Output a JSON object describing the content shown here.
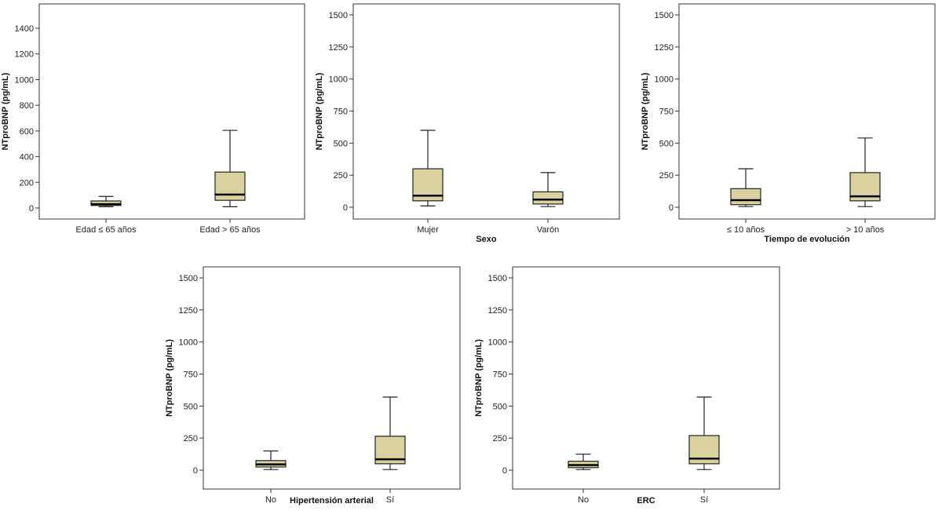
{
  "colors": {
    "box_fill": "#d9d29e",
    "stroke": "#222222",
    "median": "#000000",
    "frame": "#333333"
  },
  "chart_data": [
    {
      "type": "box",
      "name": "age",
      "ylabel": "NTproBNP (pg/mL)",
      "xlabel": "",
      "ylim": [
        0,
        1500
      ],
      "yticks": [
        0,
        200,
        400,
        600,
        800,
        1000,
        1200,
        1400
      ],
      "categories": [
        "Edad ≤ 65 años",
        "Edad > 65 años"
      ],
      "boxes": [
        {
          "min": 10,
          "q1": 20,
          "median": 30,
          "q3": 55,
          "max": 90
        },
        {
          "min": 10,
          "q1": 60,
          "median": 105,
          "q3": 280,
          "max": 605
        }
      ]
    },
    {
      "type": "box",
      "name": "sex",
      "ylabel": "NTproBNP (pg/mL)",
      "xlabel": "Sexo",
      "ylim": [
        0,
        1560
      ],
      "yticks": [
        0,
        250,
        500,
        750,
        1000,
        1250,
        1500
      ],
      "categories": [
        "Mujer",
        "Varón"
      ],
      "boxes": [
        {
          "min": 10,
          "q1": 50,
          "median": 90,
          "q3": 300,
          "max": 600
        },
        {
          "min": 5,
          "q1": 25,
          "median": 60,
          "q3": 120,
          "max": 270
        }
      ]
    },
    {
      "type": "box",
      "name": "evolution",
      "ylabel": "NTproBNP (pg/mL)",
      "xlabel": "Tiempo de evolución",
      "ylim": [
        0,
        1560
      ],
      "yticks": [
        0,
        250,
        500,
        750,
        1000,
        1250,
        1500
      ],
      "categories": [
        "≤ 10 años",
        "> 10 años"
      ],
      "boxes": [
        {
          "min": 5,
          "q1": 20,
          "median": 55,
          "q3": 145,
          "max": 300
        },
        {
          "min": 5,
          "q1": 50,
          "median": 85,
          "q3": 270,
          "max": 540
        }
      ]
    },
    {
      "type": "box",
      "name": "hypertension",
      "ylabel": "NTproBNP (pg/mL)",
      "xlabel": "Hipertensión arterial",
      "ylim": [
        0,
        1560
      ],
      "yticks": [
        0,
        250,
        500,
        750,
        1000,
        1250,
        1500
      ],
      "categories": [
        "No",
        "Sí"
      ],
      "boxes": [
        {
          "min": 5,
          "q1": 25,
          "median": 45,
          "q3": 75,
          "max": 150
        },
        {
          "min": 5,
          "q1": 50,
          "median": 85,
          "q3": 265,
          "max": 570
        }
      ]
    },
    {
      "type": "box",
      "name": "ckd",
      "ylabel": "NTproBNP (pg/mL)",
      "xlabel": "ERC",
      "ylim": [
        0,
        1560
      ],
      "yticks": [
        0,
        250,
        500,
        750,
        1000,
        1250,
        1500
      ],
      "categories": [
        "No",
        "Sí"
      ],
      "boxes": [
        {
          "min": 5,
          "q1": 20,
          "median": 40,
          "q3": 70,
          "max": 125
        },
        {
          "min": 5,
          "q1": 50,
          "median": 90,
          "q3": 270,
          "max": 570
        }
      ]
    }
  ]
}
